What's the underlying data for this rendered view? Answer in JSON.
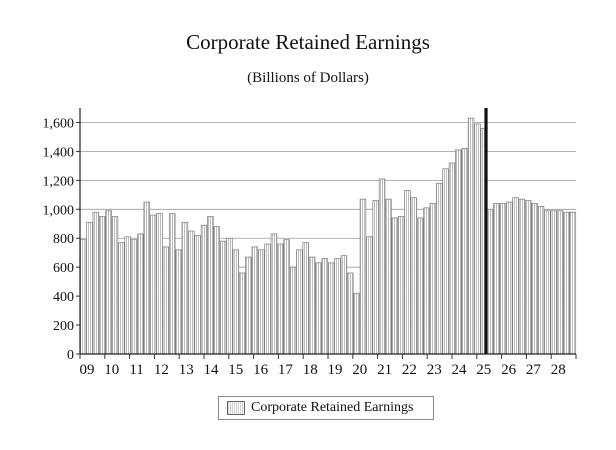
{
  "chart_data": {
    "type": "bar",
    "title": "Corporate Retained Earnings",
    "subtitle": "(Billions of Dollars)",
    "xlabel": "",
    "ylabel": "",
    "ylim": [
      0,
      1700
    ],
    "yticks": [
      0,
      200,
      400,
      600,
      800,
      1000,
      1200,
      1400,
      1600
    ],
    "ytick_labels": [
      "0",
      "200",
      "400",
      "600",
      "800",
      "1,000",
      "1,200",
      "1,400",
      "1,600"
    ],
    "xtick_labels": [
      "09",
      "10",
      "11",
      "12",
      "13",
      "14",
      "15",
      "16",
      "17",
      "18",
      "19",
      "20",
      "21",
      "22",
      "23",
      "24",
      "25",
      "26",
      "27",
      "28"
    ],
    "grid": true,
    "legend_position": "bottom-center",
    "forecast_marker_after_index": 63,
    "series": [
      {
        "name": "Corporate Retained Earnings",
        "values": [
          790,
          910,
          980,
          950,
          990,
          950,
          770,
          810,
          790,
          830,
          1050,
          960,
          970,
          740,
          970,
          720,
          910,
          850,
          820,
          890,
          950,
          880,
          780,
          800,
          720,
          560,
          670,
          740,
          720,
          760,
          830,
          760,
          790,
          600,
          720,
          770,
          670,
          630,
          660,
          630,
          660,
          680,
          560,
          420,
          1070,
          810,
          1060,
          1210,
          1070,
          940,
          950,
          1130,
          1080,
          940,
          1010,
          1040,
          1180,
          1280,
          1320,
          1410,
          1420,
          1630,
          1590,
          1560,
          1000,
          1040,
          1040,
          1050,
          1080,
          1070,
          1060,
          1040,
          1020,
          990,
          990,
          990,
          980,
          980
        ]
      }
    ],
    "colors": {
      "bar_fill": "#d9d9d9",
      "bar_stroke": "#7a7a7a",
      "marker": "#111111"
    }
  }
}
